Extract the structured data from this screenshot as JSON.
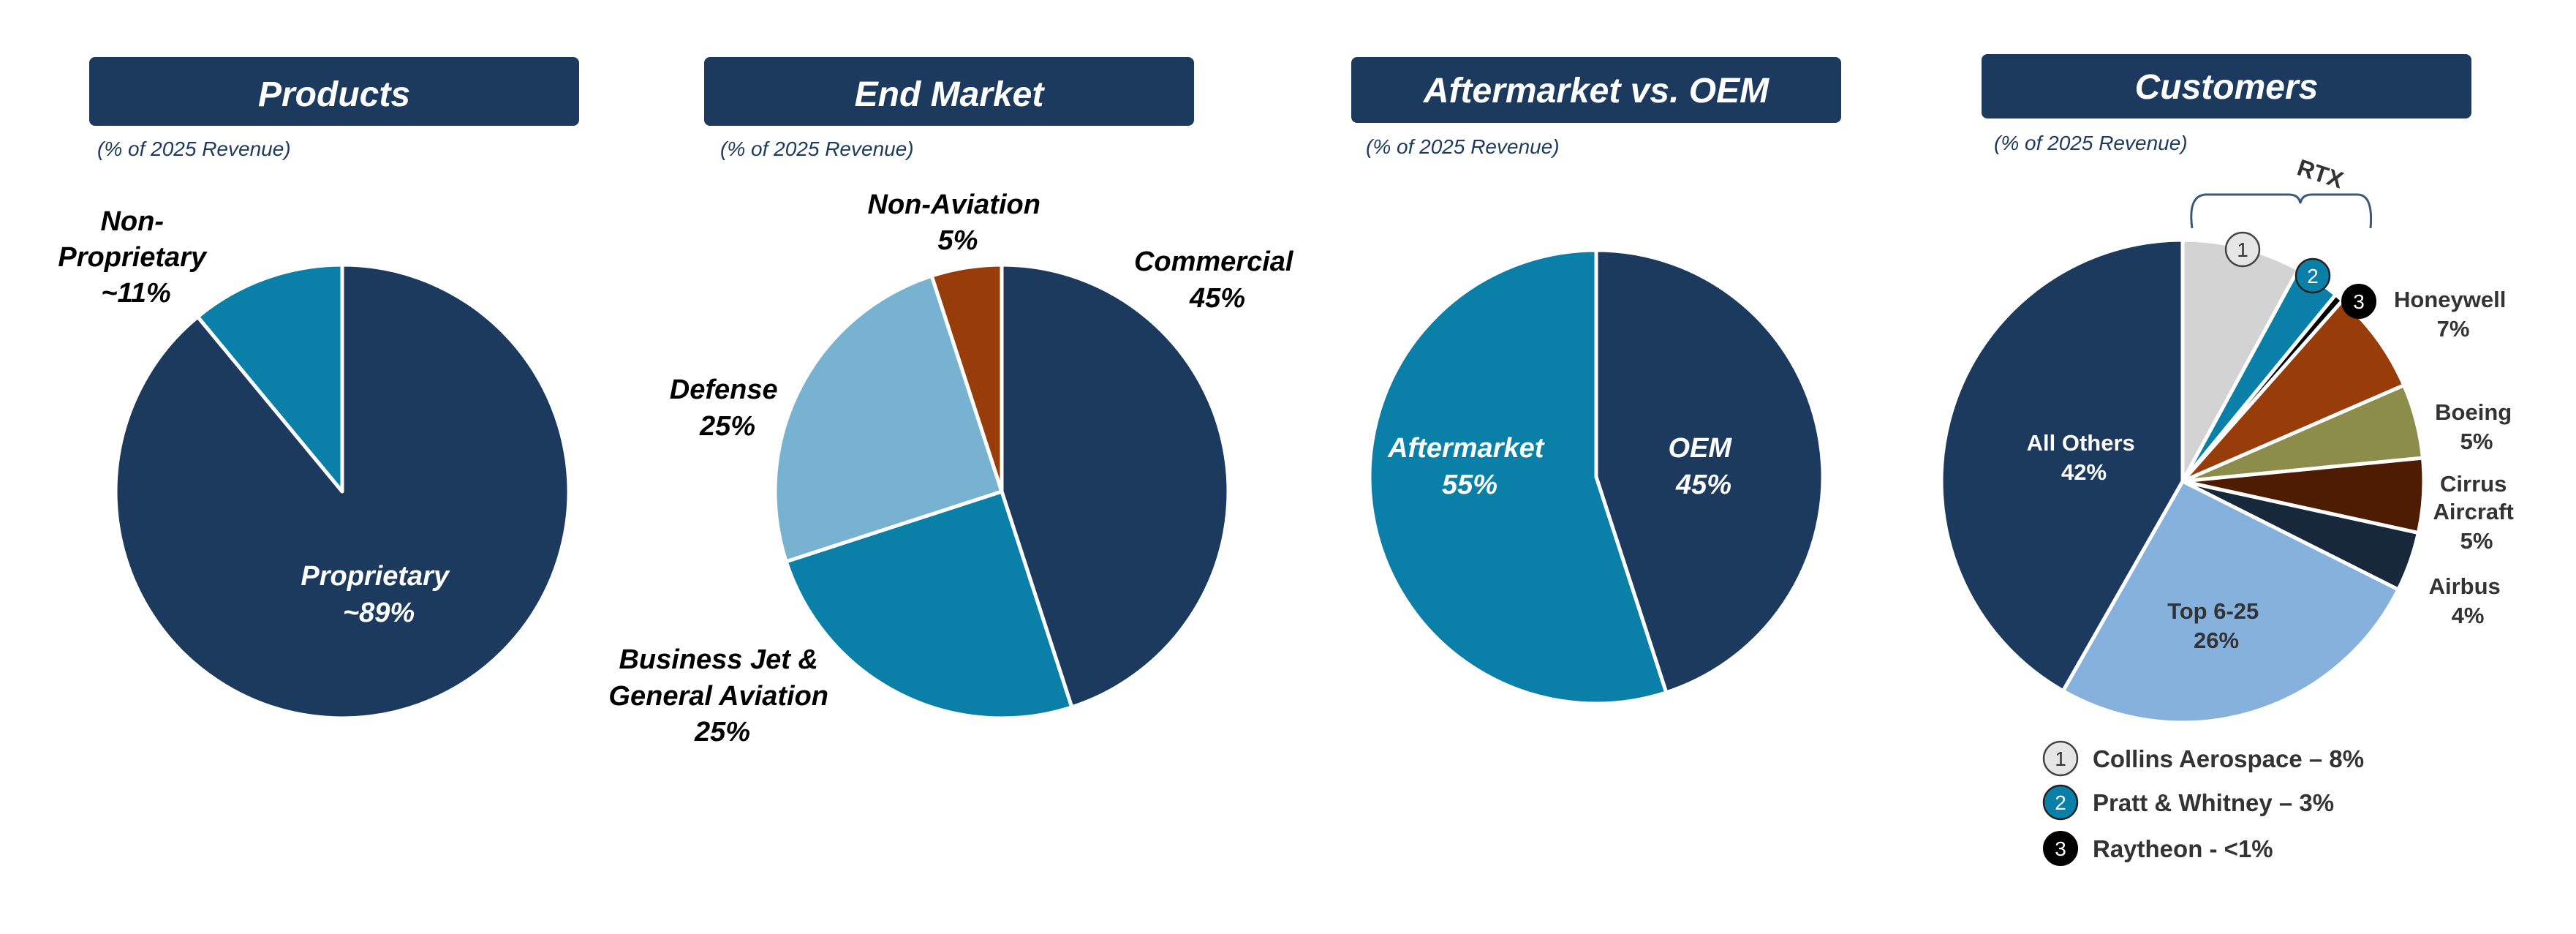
{
  "colors": {
    "header_bg": "#1c3a5e",
    "navy": "#1c3a5e",
    "teal": "#0a7fa8",
    "light_blue": "#77b3d1",
    "rust": "#983c0a",
    "light_gray": "#d3d3d3",
    "olive": "#8d8d4b",
    "brown": "#4e1c02",
    "dark_navy": "#16283a",
    "sky": "#86b1dd"
  },
  "chart_data": [
    {
      "type": "pie",
      "title": "Products",
      "subtitle": "(% of 2025 Revenue)",
      "slices": [
        {
          "label": "Proprietary",
          "value_label": "~89%",
          "value": 89,
          "color": "#1c3a5e"
        },
        {
          "label": "Non-Proprietary",
          "value_label": "~11%",
          "value": 11,
          "color": "#0a7fa8"
        }
      ]
    },
    {
      "type": "pie",
      "title": "End Market",
      "subtitle": "(% of 2025 Revenue)",
      "slices": [
        {
          "label": "Commercial",
          "value_label": "45%",
          "value": 45,
          "color": "#1c3a5e"
        },
        {
          "label": "Business Jet & General Aviation",
          "value_label": "25%",
          "value": 25,
          "color": "#0a7fa8"
        },
        {
          "label": "Defense",
          "value_label": "25%",
          "value": 25,
          "color": "#77b3d1"
        },
        {
          "label": "Non-Aviation",
          "value_label": "5%",
          "value": 5,
          "color": "#983c0a"
        }
      ]
    },
    {
      "type": "pie",
      "title": "Aftermarket vs. OEM",
      "subtitle": "(% of 2025 Revenue)",
      "slices": [
        {
          "label": "OEM",
          "value_label": "45%",
          "value": 45,
          "color": "#1c3a5e"
        },
        {
          "label": "Aftermarket",
          "value_label": "55%",
          "value": 55,
          "color": "#0a7fa8"
        }
      ]
    },
    {
      "type": "pie",
      "title": "Customers",
      "subtitle": "(% of 2025 Revenue)",
      "slices": [
        {
          "label": "Collins Aerospace",
          "value": 8,
          "color": "#d3d3d3"
        },
        {
          "label": "Pratt & Whitney",
          "value": 3,
          "color": "#0a7fa8"
        },
        {
          "label": "Raytheon",
          "value": 0.6,
          "color": "#000000"
        },
        {
          "label": "Honeywell",
          "value_label": "7%",
          "value": 7,
          "color": "#983c0a"
        },
        {
          "label": "Boeing",
          "value_label": "5%",
          "value": 5,
          "color": "#8d8d4b"
        },
        {
          "label": "Cirrus Aircraft",
          "value_label": "5%",
          "value": 5,
          "color": "#4e1c02"
        },
        {
          "label": "Airbus",
          "value_label": "4%",
          "value": 4,
          "color": "#16283a"
        },
        {
          "label": "Top 6-25",
          "value_label": "26%",
          "value": 26,
          "color": "#86b1dd"
        },
        {
          "label": "All Others",
          "value_label": "42%",
          "value": 42,
          "color": "#1c3a5e"
        }
      ],
      "group_bracket": "RTX",
      "legend": [
        {
          "marker": "1",
          "text": "Collins Aerospace – 8%"
        },
        {
          "marker": "2",
          "text": "Pratt & Whitney – 3%"
        },
        {
          "marker": "3",
          "text": "Raytheon - <1%"
        }
      ]
    }
  ],
  "labels": {
    "products": {
      "nonprop": [
        "Non-",
        "Proprietary",
        "~11%"
      ],
      "prop": [
        "Proprietary",
        "~89%"
      ]
    },
    "end_market": {
      "nonaviation": [
        "Non-Aviation",
        "5%"
      ],
      "commercial": [
        "Commercial",
        "45%"
      ],
      "defense": [
        "Defense",
        "25%"
      ],
      "bizjet": [
        "Business Jet &",
        "General Aviation",
        "25%"
      ]
    },
    "aftermarket": {
      "aftermarket": [
        "Aftermarket",
        "55%"
      ],
      "oem": [
        "OEM",
        "45%"
      ]
    },
    "customers": {
      "honeywell": [
        "Honeywell",
        "7%"
      ],
      "boeing": [
        "Boeing",
        "5%"
      ],
      "cirrus": [
        "Cirrus",
        "Aircraft",
        "5%"
      ],
      "airbus": [
        "Airbus",
        "4%"
      ],
      "top": [
        "Top 6-25",
        "26%"
      ],
      "others": [
        "All Others",
        "42%"
      ],
      "markers": [
        "1",
        "2",
        "3"
      ]
    }
  }
}
